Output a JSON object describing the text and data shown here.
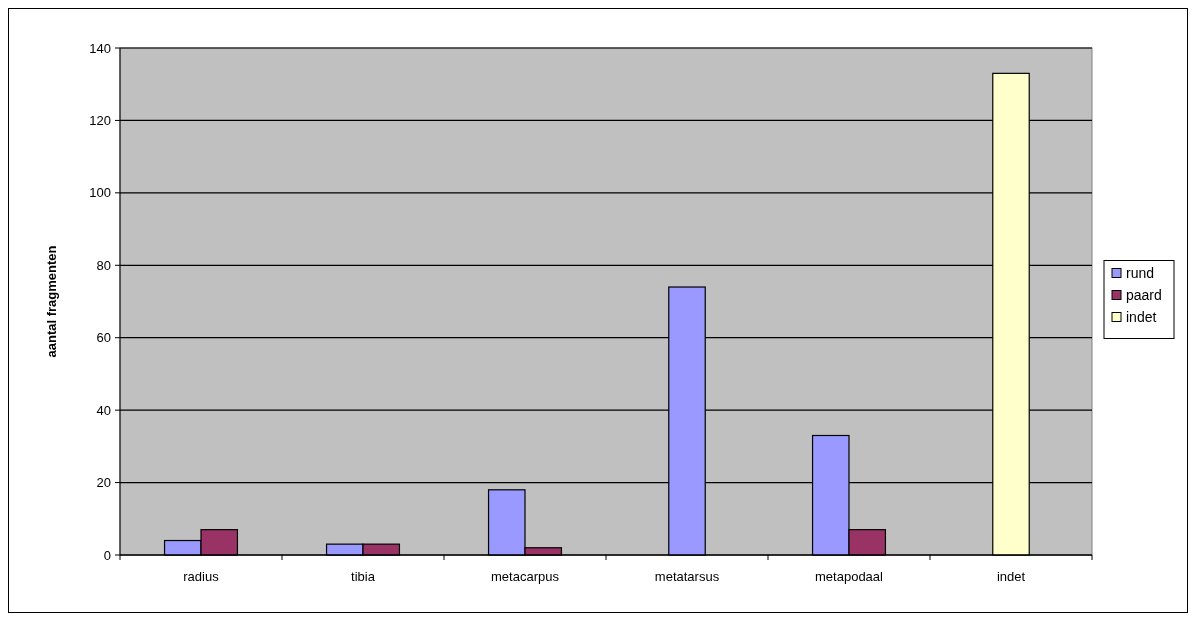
{
  "chart_data": {
    "type": "bar",
    "ylabel": "aantal fragmenten",
    "categories": [
      "radius",
      "tibia",
      "metacarpus",
      "metatarsus",
      "metapodaal",
      "indet"
    ],
    "series": [
      {
        "name": "rund",
        "color": "#9999ff",
        "values": [
          4,
          3,
          18,
          74,
          33,
          null
        ]
      },
      {
        "name": "paard",
        "color": "#993366",
        "values": [
          7,
          3,
          2,
          null,
          7,
          null
        ]
      },
      {
        "name": "indet",
        "color": "#ffffcc",
        "values": [
          null,
          null,
          null,
          null,
          null,
          133
        ]
      }
    ],
    "ylim": [
      0,
      140
    ],
    "yticks": [
      0,
      20,
      40,
      60,
      80,
      100,
      120,
      140
    ],
    "grid": "y",
    "legend": "right"
  }
}
